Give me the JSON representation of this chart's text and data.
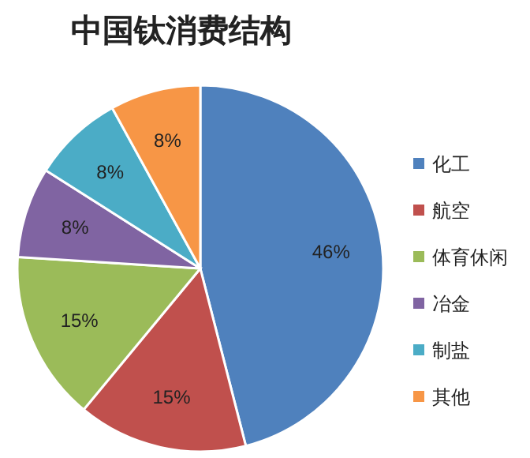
{
  "chart_data": {
    "type": "pie",
    "title": "中国钛消费结构",
    "categories": [
      "化工",
      "航空",
      "体育休闲",
      "冶金",
      "制盐",
      "其他"
    ],
    "values": [
      46,
      15,
      15,
      8,
      8,
      8
    ],
    "colors": [
      "#4f81bd",
      "#c0504d",
      "#9bbb59",
      "#8064a2",
      "#4bacc6",
      "#f79646"
    ],
    "value_labels": [
      "46%",
      "15%",
      "15%",
      "8%",
      "8%",
      "8%"
    ],
    "legend": "right"
  }
}
